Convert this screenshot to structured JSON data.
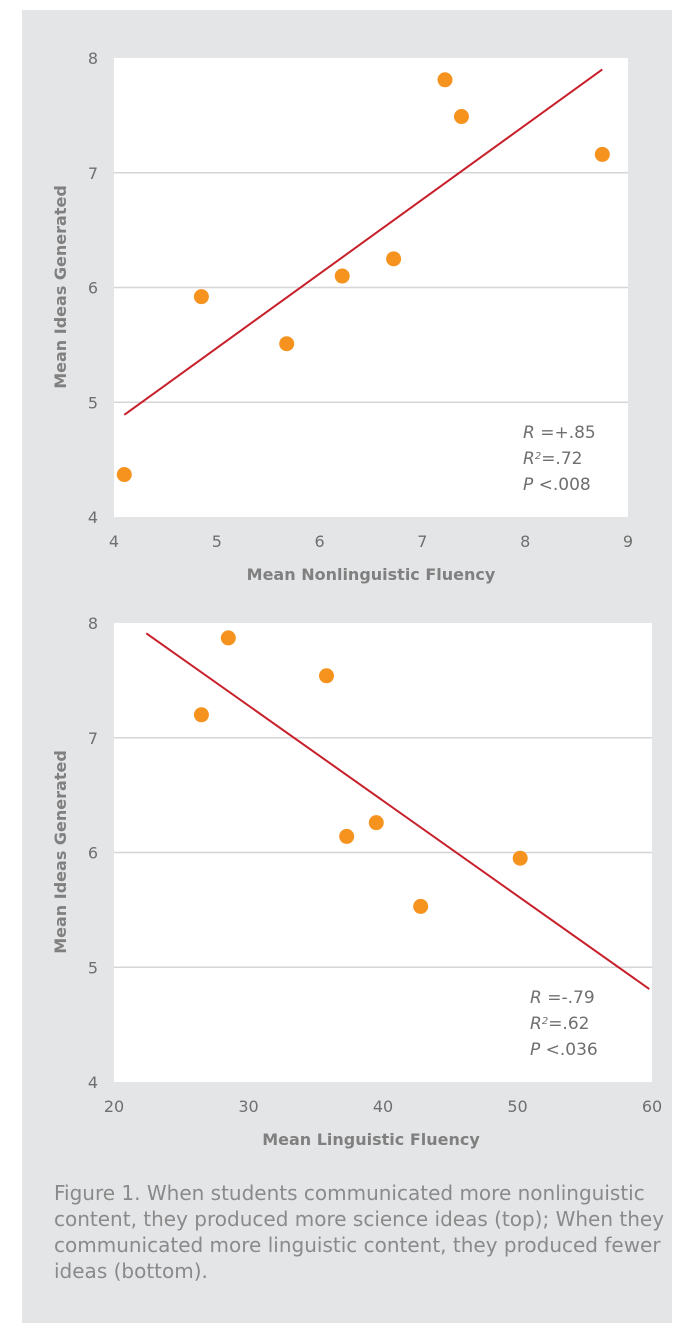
{
  "chart_data": [
    {
      "type": "scatter",
      "xlabel": "Mean Nonlinguistic Fluency",
      "ylabel": "Mean Ideas Generated",
      "xlim": [
        4,
        9
      ],
      "ylim": [
        4,
        8
      ],
      "xticks": [
        4,
        5,
        6,
        7,
        8,
        9
      ],
      "yticks": [
        4,
        5,
        6,
        7,
        8
      ],
      "grid": "horizontal",
      "points": [
        {
          "x": 4.1,
          "y": 4.37
        },
        {
          "x": 4.85,
          "y": 5.92
        },
        {
          "x": 5.68,
          "y": 5.51
        },
        {
          "x": 6.22,
          "y": 6.1
        },
        {
          "x": 6.72,
          "y": 6.25
        },
        {
          "x": 7.22,
          "y": 7.81
        },
        {
          "x": 7.38,
          "y": 7.49
        },
        {
          "x": 8.75,
          "y": 7.16
        }
      ],
      "trendline": {
        "x": [
          4.1,
          8.75
        ],
        "y": [
          4.89,
          7.9
        ]
      },
      "stats": {
        "r_value": "=+.85",
        "r2_value": "=.72",
        "p_value": "<.008"
      },
      "colors": {
        "point": "#f6931f",
        "line": "#c8202b"
      }
    },
    {
      "type": "scatter",
      "xlabel": "Mean Linguistic Fluency",
      "ylabel": "Mean Ideas Generated",
      "xlim": [
        20,
        60
      ],
      "ylim": [
        4,
        8
      ],
      "xticks": [
        20,
        30,
        40,
        50,
        60
      ],
      "yticks": [
        4,
        5,
        6,
        7,
        8
      ],
      "grid": "horizontal",
      "points": [
        {
          "x": 26.5,
          "y": 7.2
        },
        {
          "x": 28.5,
          "y": 7.87
        },
        {
          "x": 35.8,
          "y": 7.54
        },
        {
          "x": 37.3,
          "y": 6.14
        },
        {
          "x": 39.5,
          "y": 6.26
        },
        {
          "x": 42.8,
          "y": 5.53
        },
        {
          "x": 50.2,
          "y": 5.95
        }
      ],
      "trendline": {
        "x": [
          22.4,
          59.8
        ],
        "y": [
          7.91,
          4.81
        ]
      },
      "stats": {
        "r_value": "=-.79",
        "r2_value": "=.62",
        "p_value": "<.036"
      },
      "colors": {
        "point": "#f6931f",
        "line": "#c8202b"
      }
    }
  ],
  "caption": "Figure 1. When students communicated more nonlinguistic content, they produced more science ideas (top); When they communicated more linguistic content, they produced fewer ideas (bottom)."
}
